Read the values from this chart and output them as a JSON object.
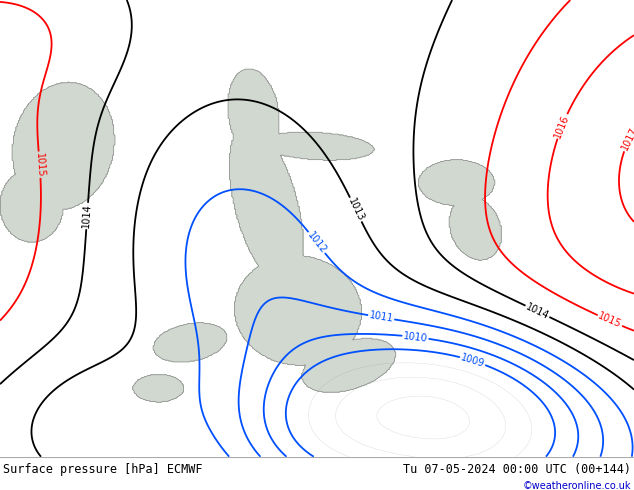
{
  "title_left": "Surface pressure [hPa] ECMWF",
  "title_right": "Tu 07-05-2024 00:00 UTC (00+144)",
  "credit": "©weatheronline.co.uk",
  "bg_color": "#c8f0a0",
  "sea_color": "#c8c8c8",
  "sea_fill_color": "#d0d8d0",
  "fig_width": 6.34,
  "fig_height": 4.9,
  "dpi": 100,
  "bottom_bar_color": "#e8e8e8",
  "bottom_bar_height": 0.068,
  "red_color": "#ff0000",
  "black_color": "#000000",
  "blue_color": "#0050ff",
  "credit_color": "#0000cc",
  "label_fontsize": 7
}
